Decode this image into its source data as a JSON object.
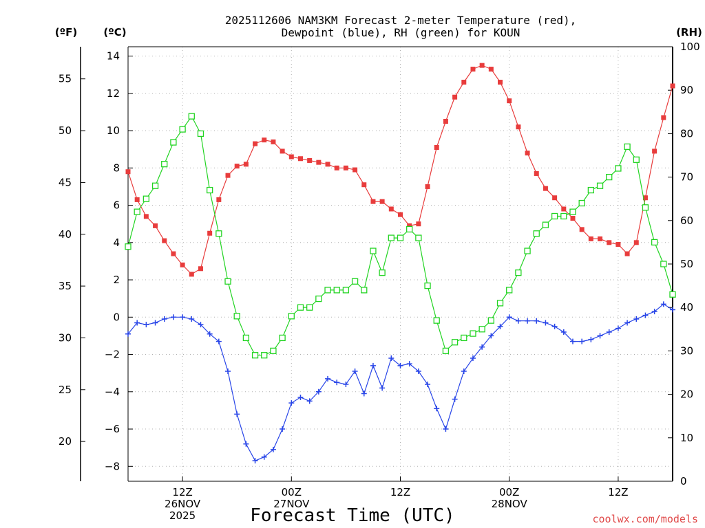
{
  "chart_data": {
    "type": "line",
    "title_lines": [
      "2025112606 NAM3KM Forecast 2-meter Temperature (red),",
      "Dewpoint (blue), RH (green) for KOUN"
    ],
    "xlabel": "Forecast Time (UTC)",
    "credit": "coolwx.com/models",
    "units": {
      "fahrenheit": "(ºF)",
      "celsius": "(ºC)",
      "rh": "(RH)"
    },
    "x_unit": "forecast hour (from 2025-11-26 06Z)",
    "xlim": [
      0,
      60
    ],
    "x_ticks": [
      {
        "x": 6,
        "lines": [
          "12Z",
          "26NOV",
          "2025"
        ]
      },
      {
        "x": 18,
        "lines": [
          "00Z",
          "27NOV"
        ]
      },
      {
        "x": 30,
        "lines": [
          "12Z"
        ]
      },
      {
        "x": 42,
        "lines": [
          "00Z",
          "28NOV"
        ]
      },
      {
        "x": 54,
        "lines": [
          "12Z"
        ]
      }
    ],
    "y_celsius": {
      "range": [
        -8.8,
        14.5
      ],
      "ticks": [
        -8,
        -6,
        -4,
        -2,
        0,
        2,
        4,
        6,
        8,
        10,
        12,
        14
      ]
    },
    "y_fahrenheit": {
      "ticks": [
        20,
        25,
        30,
        35,
        40,
        45,
        50,
        55
      ]
    },
    "y_rh": {
      "range": [
        0,
        100
      ],
      "ticks": [
        0,
        10,
        20,
        30,
        40,
        50,
        60,
        70,
        80,
        90,
        100
      ]
    },
    "x": [
      0,
      1,
      2,
      3,
      4,
      5,
      6,
      7,
      8,
      9,
      10,
      11,
      12,
      13,
      14,
      15,
      16,
      17,
      18,
      19,
      20,
      21,
      22,
      23,
      24,
      25,
      26,
      27,
      28,
      29,
      30,
      31,
      32,
      33,
      34,
      35,
      36,
      37,
      38,
      39,
      40,
      41,
      42,
      43,
      44,
      45,
      46,
      47,
      48,
      49,
      50,
      51,
      52,
      53,
      54,
      55,
      56,
      57,
      58,
      59,
      60
    ],
    "series": [
      {
        "name": "2-meter Temperature",
        "unit": "C",
        "axis": "celsius",
        "color": "#e83c3c",
        "marker": "filled-square",
        "values": [
          7.8,
          6.3,
          5.4,
          4.9,
          4.1,
          3.4,
          2.8,
          2.3,
          2.6,
          4.5,
          6.3,
          7.6,
          8.1,
          8.2,
          9.3,
          9.5,
          9.4,
          8.9,
          8.6,
          8.5,
          8.4,
          8.3,
          8.2,
          8.0,
          8.0,
          7.9,
          7.1,
          6.2,
          6.2,
          5.8,
          5.5,
          4.9,
          5.0,
          7.0,
          9.1,
          10.5,
          11.8,
          12.6,
          13.3,
          13.5,
          13.3,
          12.6,
          11.6,
          10.2,
          8.8,
          7.7,
          6.9,
          6.4,
          5.8,
          5.3,
          4.7,
          4.2,
          4.2,
          4.0,
          3.9,
          3.4,
          4.0,
          6.4,
          8.9,
          10.7,
          12.4
        ]
      },
      {
        "name": "Dewpoint",
        "unit": "C",
        "axis": "celsius",
        "color": "#2845e8",
        "marker": "plus",
        "values": [
          -0.9,
          -0.3,
          -0.4,
          -0.3,
          -0.1,
          0.0,
          0.0,
          -0.1,
          -0.4,
          -0.9,
          -1.3,
          -2.9,
          -5.2,
          -6.8,
          -7.7,
          -7.5,
          -7.1,
          -6.0,
          -4.6,
          -4.3,
          -4.5,
          -4.0,
          -3.3,
          -3.5,
          -3.6,
          -2.9,
          -4.1,
          -2.6,
          -3.8,
          -2.2,
          -2.6,
          -2.5,
          -2.9,
          -3.6,
          -4.9,
          -6.0,
          -4.4,
          -2.9,
          -2.2,
          -1.6,
          -1.0,
          -0.5,
          0.0,
          -0.2,
          -0.2,
          -0.2,
          -0.3,
          -0.5,
          -0.8,
          -1.3,
          -1.3,
          -1.2,
          -1.0,
          -0.8,
          -0.6,
          -0.3,
          -0.1,
          0.1,
          0.3,
          0.7,
          0.4
        ]
      },
      {
        "name": "RH",
        "unit": "%",
        "axis": "rh",
        "color": "#22d422",
        "marker": "open-square",
        "values": [
          54,
          62,
          65,
          68,
          73,
          78,
          81,
          84,
          80,
          67,
          57,
          46,
          38,
          33,
          29,
          29,
          30,
          33,
          38,
          40,
          40,
          42,
          44,
          44,
          44,
          46,
          44,
          53,
          48,
          56,
          56,
          58,
          56,
          45,
          37,
          30,
          32,
          33,
          34,
          35,
          37,
          41,
          44,
          48,
          53,
          57,
          59,
          61,
          61,
          62,
          64,
          67,
          68,
          70,
          72,
          77,
          74,
          63,
          55,
          50,
          43
        ]
      }
    ]
  }
}
